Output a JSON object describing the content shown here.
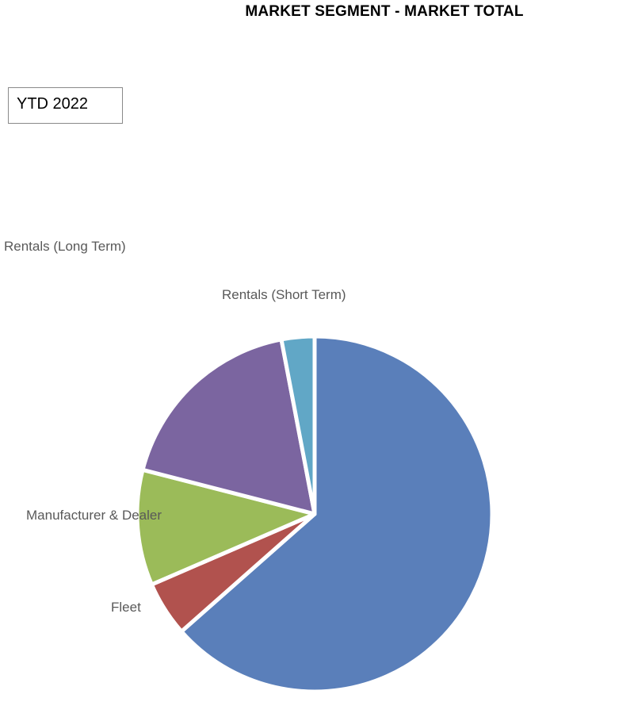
{
  "chart_data": {
    "type": "pie",
    "title": "MARKET SEGMENT - MARKET TOTAL",
    "filter_label": "YTD 2022",
    "slices": [
      {
        "key": "retail",
        "label": "",
        "value": 63.5,
        "color": "#5A7FBA"
      },
      {
        "key": "fleet",
        "label": "Fleet",
        "value": 5.0,
        "color": "#B1524E"
      },
      {
        "key": "manufacturer-dealer",
        "label": "Manufacturer & Dealer",
        "value": 10.5,
        "color": "#9BBB59"
      },
      {
        "key": "rentals-long-term",
        "label": "Rentals (Long Term)",
        "value": 18.0,
        "color": "#7B65A0"
      },
      {
        "key": "rentals-short-term",
        "label": "Rentals (Short Term)",
        "value": 3.0,
        "color": "#61A7C6"
      }
    ],
    "start_angle": "12 o'clock",
    "direction": "clockwise",
    "legend": "none"
  }
}
